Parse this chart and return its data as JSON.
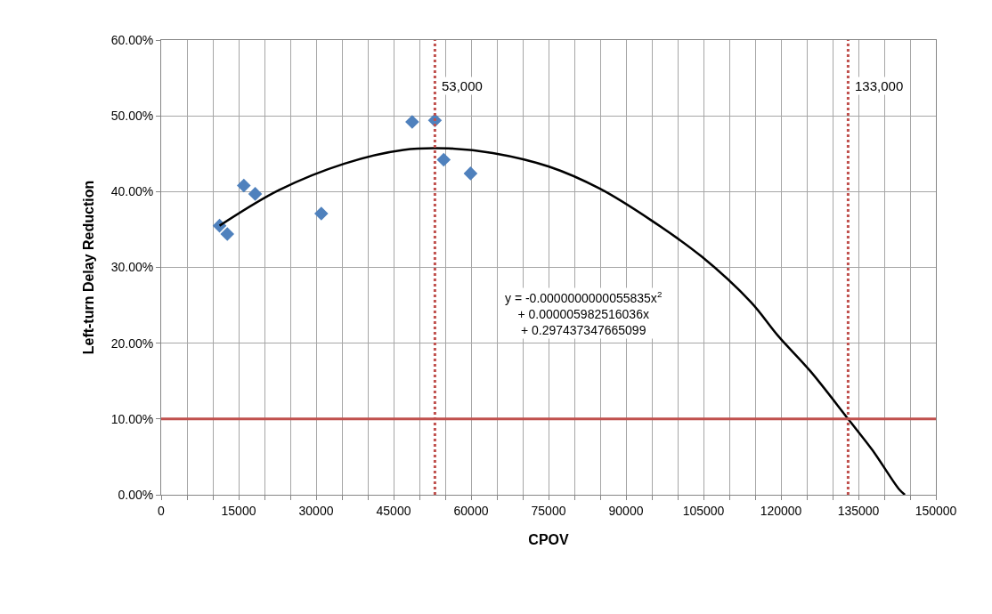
{
  "chart_data": {
    "type": "scatter",
    "xlabel": "CPOV",
    "ylabel": "Left-turn Delay Reduction",
    "xlim": [
      0,
      150000
    ],
    "ylim": [
      0,
      0.6
    ],
    "xticks": [
      0,
      {
        "value": 5000,
        "label": null
      },
      {
        "value": 10000,
        "label": null
      },
      15000,
      {
        "value": 20000,
        "label": null
      },
      {
        "value": 25000,
        "label": null
      },
      30000,
      {
        "value": 35000,
        "label": null
      },
      {
        "value": 40000,
        "label": null
      },
      45000,
      {
        "value": 50000,
        "label": null
      },
      {
        "value": 55000,
        "label": null
      },
      60000,
      {
        "value": 65000,
        "label": null
      },
      {
        "value": 70000,
        "label": null
      },
      75000,
      {
        "value": 80000,
        "label": null
      },
      {
        "value": 85000,
        "label": null
      },
      90000,
      {
        "value": 95000,
        "label": null
      },
      {
        "value": 100000,
        "label": null
      },
      105000,
      {
        "value": 110000,
        "label": null
      },
      {
        "value": 115000,
        "label": null
      },
      120000,
      {
        "value": 125000,
        "label": null
      },
      {
        "value": 130000,
        "label": null
      },
      135000,
      {
        "value": 140000,
        "label": null
      },
      {
        "value": 145000,
        "label": null
      },
      150000
    ],
    "yticks": [
      {
        "value": 0,
        "label": "0.00%"
      },
      {
        "value": 0.1,
        "label": "10.00%"
      },
      {
        "value": 0.2,
        "label": "20.00%"
      },
      {
        "value": 0.3,
        "label": "30.00%"
      },
      {
        "value": 0.4,
        "label": "40.00%"
      },
      {
        "value": 0.5,
        "label": "50.00%"
      },
      {
        "value": 0.6,
        "label": "60.00%"
      }
    ],
    "grid": true,
    "series": [
      {
        "marker": "diamond",
        "color": "#4f81bd",
        "x": [
          11300,
          12800,
          16000,
          18200,
          31000,
          48600,
          53000,
          54700,
          59900
        ],
        "values": [
          0.355,
          0.344,
          0.408,
          0.397,
          0.371,
          0.492,
          0.494,
          0.442,
          0.424
        ]
      },
      {
        "type": "line",
        "marker": "none",
        "line_style": "solid",
        "color": "#000000",
        "x": [
          11300,
          22800,
          35500,
          46900,
          55600,
          64200,
          75100,
          84900,
          94700,
          104700,
          114200,
          119400,
          125700,
          133000,
          137800,
          142900,
          144000
        ],
        "values": [
          0.355,
          0.402,
          0.437,
          0.455,
          0.457,
          0.451,
          0.433,
          0.404,
          0.363,
          0.314,
          0.254,
          0.21,
          0.163,
          0.1,
          0.058,
          0.007,
          0
        ]
      }
    ],
    "ref_lines": [
      {
        "axis": "x",
        "value": 53000,
        "label": "53,000",
        "color": "#c0504d",
        "line_style": "dotted"
      },
      {
        "axis": "x",
        "value": 133000,
        "label": "133,000",
        "color": "#c0504d",
        "line_style": "dotted"
      },
      {
        "axis": "y",
        "value": 0.1,
        "label": null,
        "color": "#c0504d",
        "line_style": "solid"
      }
    ],
    "annotations": [
      "y = -0.0000000000055835x$^{2}$\n+ 0.000005982516036x\n+ 0.297437347665099"
    ]
  }
}
